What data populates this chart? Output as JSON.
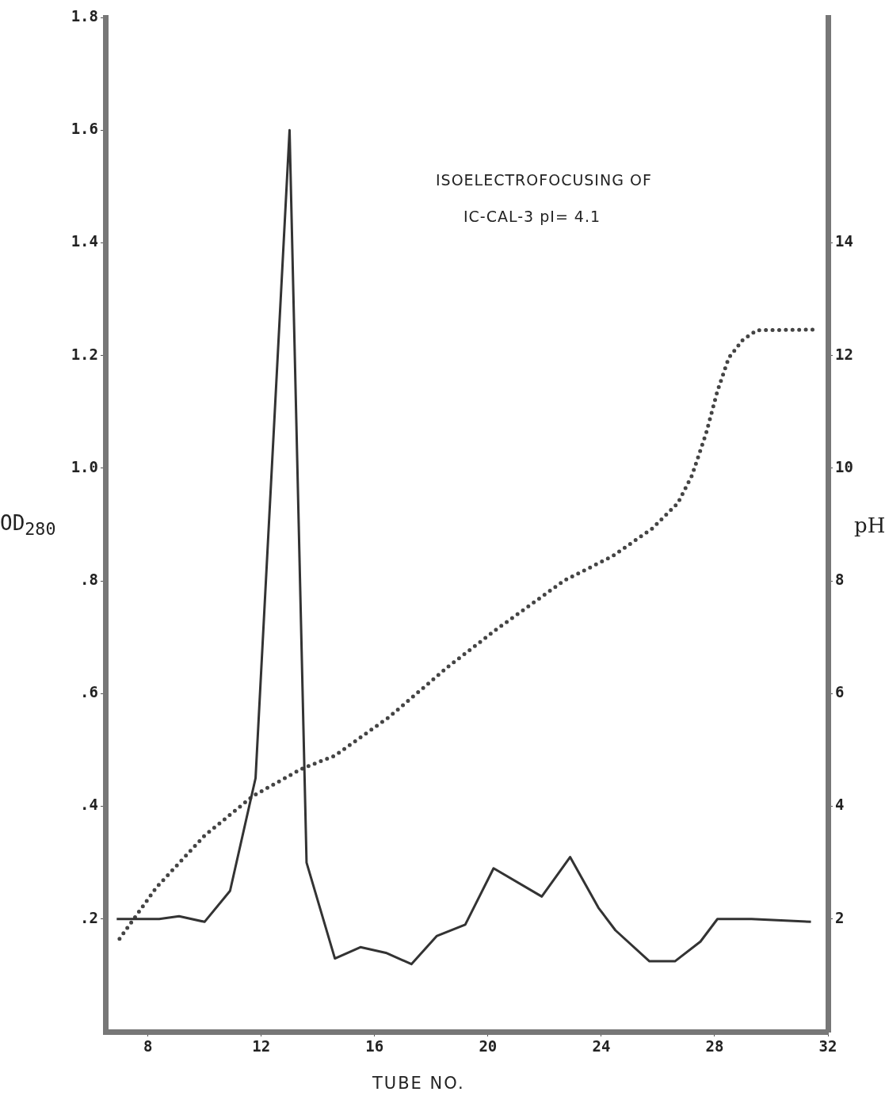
{
  "chart_data": {
    "type": "line",
    "xlabel": "TUBE NO.",
    "ylabel": "OD$_{280}$",
    "y2label": "pH",
    "annotations": [
      "ISOELECTROFOCUSING   OF",
      "IC-CAL-3   pI= 4.1"
    ],
    "xlim": [
      6.5,
      32
    ],
    "xticks": [
      8,
      12,
      16,
      20,
      24,
      28,
      32
    ],
    "ylim": [
      0,
      1.8
    ],
    "yticks": [
      {
        "value": 0.2,
        "label": ".2"
      },
      {
        "value": 0.4,
        "label": ".4"
      },
      {
        "value": 0.6,
        "label": ".6"
      },
      {
        "value": 0.8,
        "label": ".8"
      },
      {
        "value": 1.0,
        "label": "1.0"
      },
      {
        "value": 1.2,
        "label": "1.2"
      },
      {
        "value": 1.4,
        "label": "1.4"
      },
      {
        "value": 1.6,
        "label": "1.6"
      },
      {
        "value": 1.8,
        "label": "1.8"
      }
    ],
    "y2lim": [
      0,
      18
    ],
    "y2ticks": [
      2,
      4,
      6,
      8,
      10,
      12,
      14
    ],
    "grid": false,
    "legend": false,
    "series": [
      {
        "type": "line",
        "color": "#333333",
        "line_style": "solid",
        "x": [
          6.9,
          8.4,
          9.1,
          10.0,
          10.9,
          11.8,
          13.0,
          13.6,
          14.6,
          15.5,
          16.4,
          17.3,
          18.2,
          19.2,
          20.2,
          21.9,
          22.9,
          23.9,
          24.5,
          25.7,
          26.6,
          27.5,
          28.1,
          29.3,
          31.4
        ],
        "values": [
          0.2,
          0.2,
          0.205,
          0.195,
          0.25,
          0.45,
          1.6,
          0.3,
          0.13,
          0.15,
          0.14,
          0.12,
          0.17,
          0.19,
          0.29,
          0.24,
          0.31,
          0.22,
          0.18,
          0.125,
          0.125,
          0.16,
          0.2,
          0.2,
          0.195
        ]
      },
      {
        "type": "line",
        "color": "#444444",
        "line_style": "dotted",
        "axis": "y2",
        "x": [
          7.0,
          8.3,
          10.0,
          11.7,
          13.4,
          14.6,
          16.5,
          18.6,
          20.3,
          22.7,
          24.4,
          25.8,
          26.7,
          27.2,
          27.7,
          28.1,
          28.5,
          29.0,
          29.5,
          31.6
        ],
        "values": [
          1.65,
          2.56,
          3.48,
          4.18,
          4.66,
          4.9,
          5.58,
          6.48,
          7.14,
          8.01,
          8.44,
          8.93,
          9.38,
          9.87,
          10.62,
          11.37,
          11.96,
          12.28,
          12.45,
          12.46
        ]
      }
    ]
  }
}
